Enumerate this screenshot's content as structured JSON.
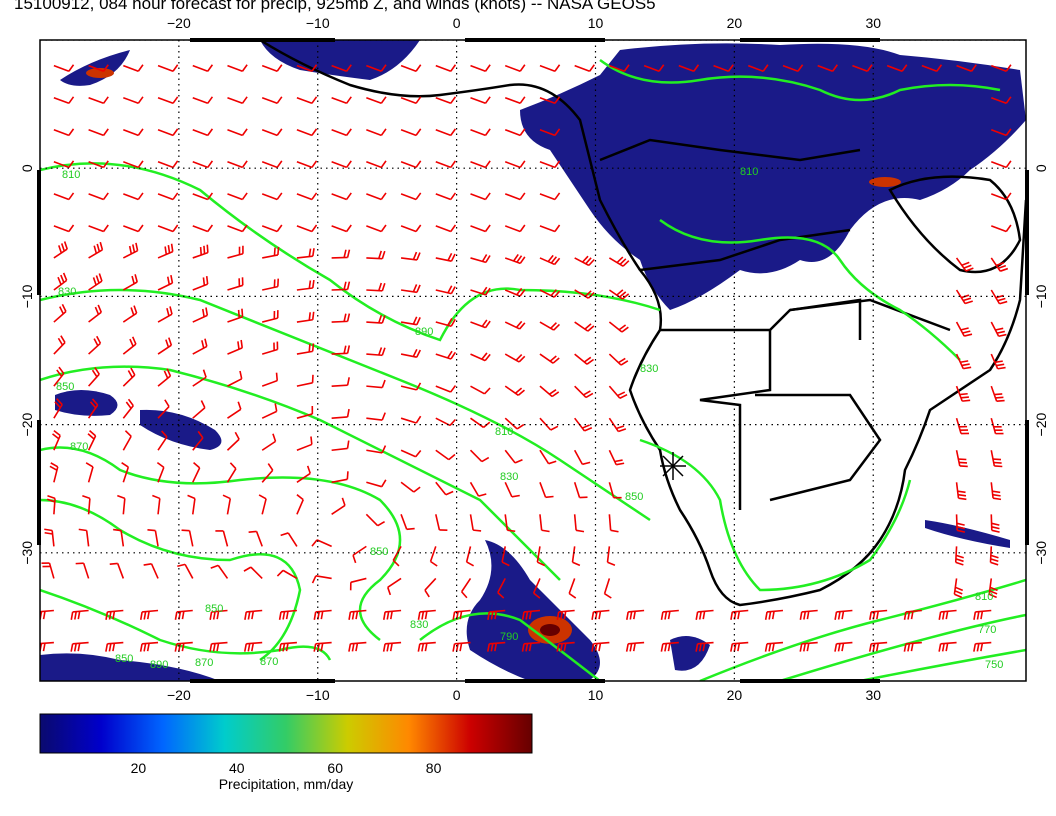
{
  "title": "15100912, 084 hour forecast for precip, 925mb Z, and winds (knots) -- NASA GEOS5",
  "map": {
    "lon_range": [
      -30,
      41
    ],
    "lat_range": [
      -40,
      10
    ],
    "lon_ticks": [
      -20,
      -10,
      0,
      10,
      20,
      30
    ],
    "lat_ticks": [
      0,
      -10,
      -20,
      -30
    ],
    "lon_tick_labels": [
      "−20",
      "−10",
      "0",
      "10",
      "20",
      "30"
    ],
    "lat_tick_labels": [
      "0",
      "−10",
      "−20",
      "−30"
    ],
    "gridlines": "dotted",
    "contour_color": "#22ee22",
    "wind_barb_color": "#ee0000",
    "coastline_color": "#000000",
    "contour_labels": [
      "810",
      "830",
      "850",
      "870",
      "890",
      "810",
      "830",
      "850",
      "870",
      "850",
      "810",
      "750",
      "770",
      "790",
      "830",
      "850",
      "870",
      "890",
      "810",
      "830",
      "850"
    ],
    "station_marker": "asterisk"
  },
  "colorbar": {
    "label": "Precipitation, mm/day",
    "ticks": [
      "20",
      "40",
      "60",
      "80"
    ],
    "tick_values": [
      20,
      40,
      60,
      80
    ],
    "range": [
      0,
      100
    ],
    "colors": [
      "#0a0a6e",
      "#0000cc",
      "#0066ff",
      "#00cccc",
      "#33cc66",
      "#cccc00",
      "#ff8800",
      "#cc0000",
      "#660000"
    ]
  }
}
